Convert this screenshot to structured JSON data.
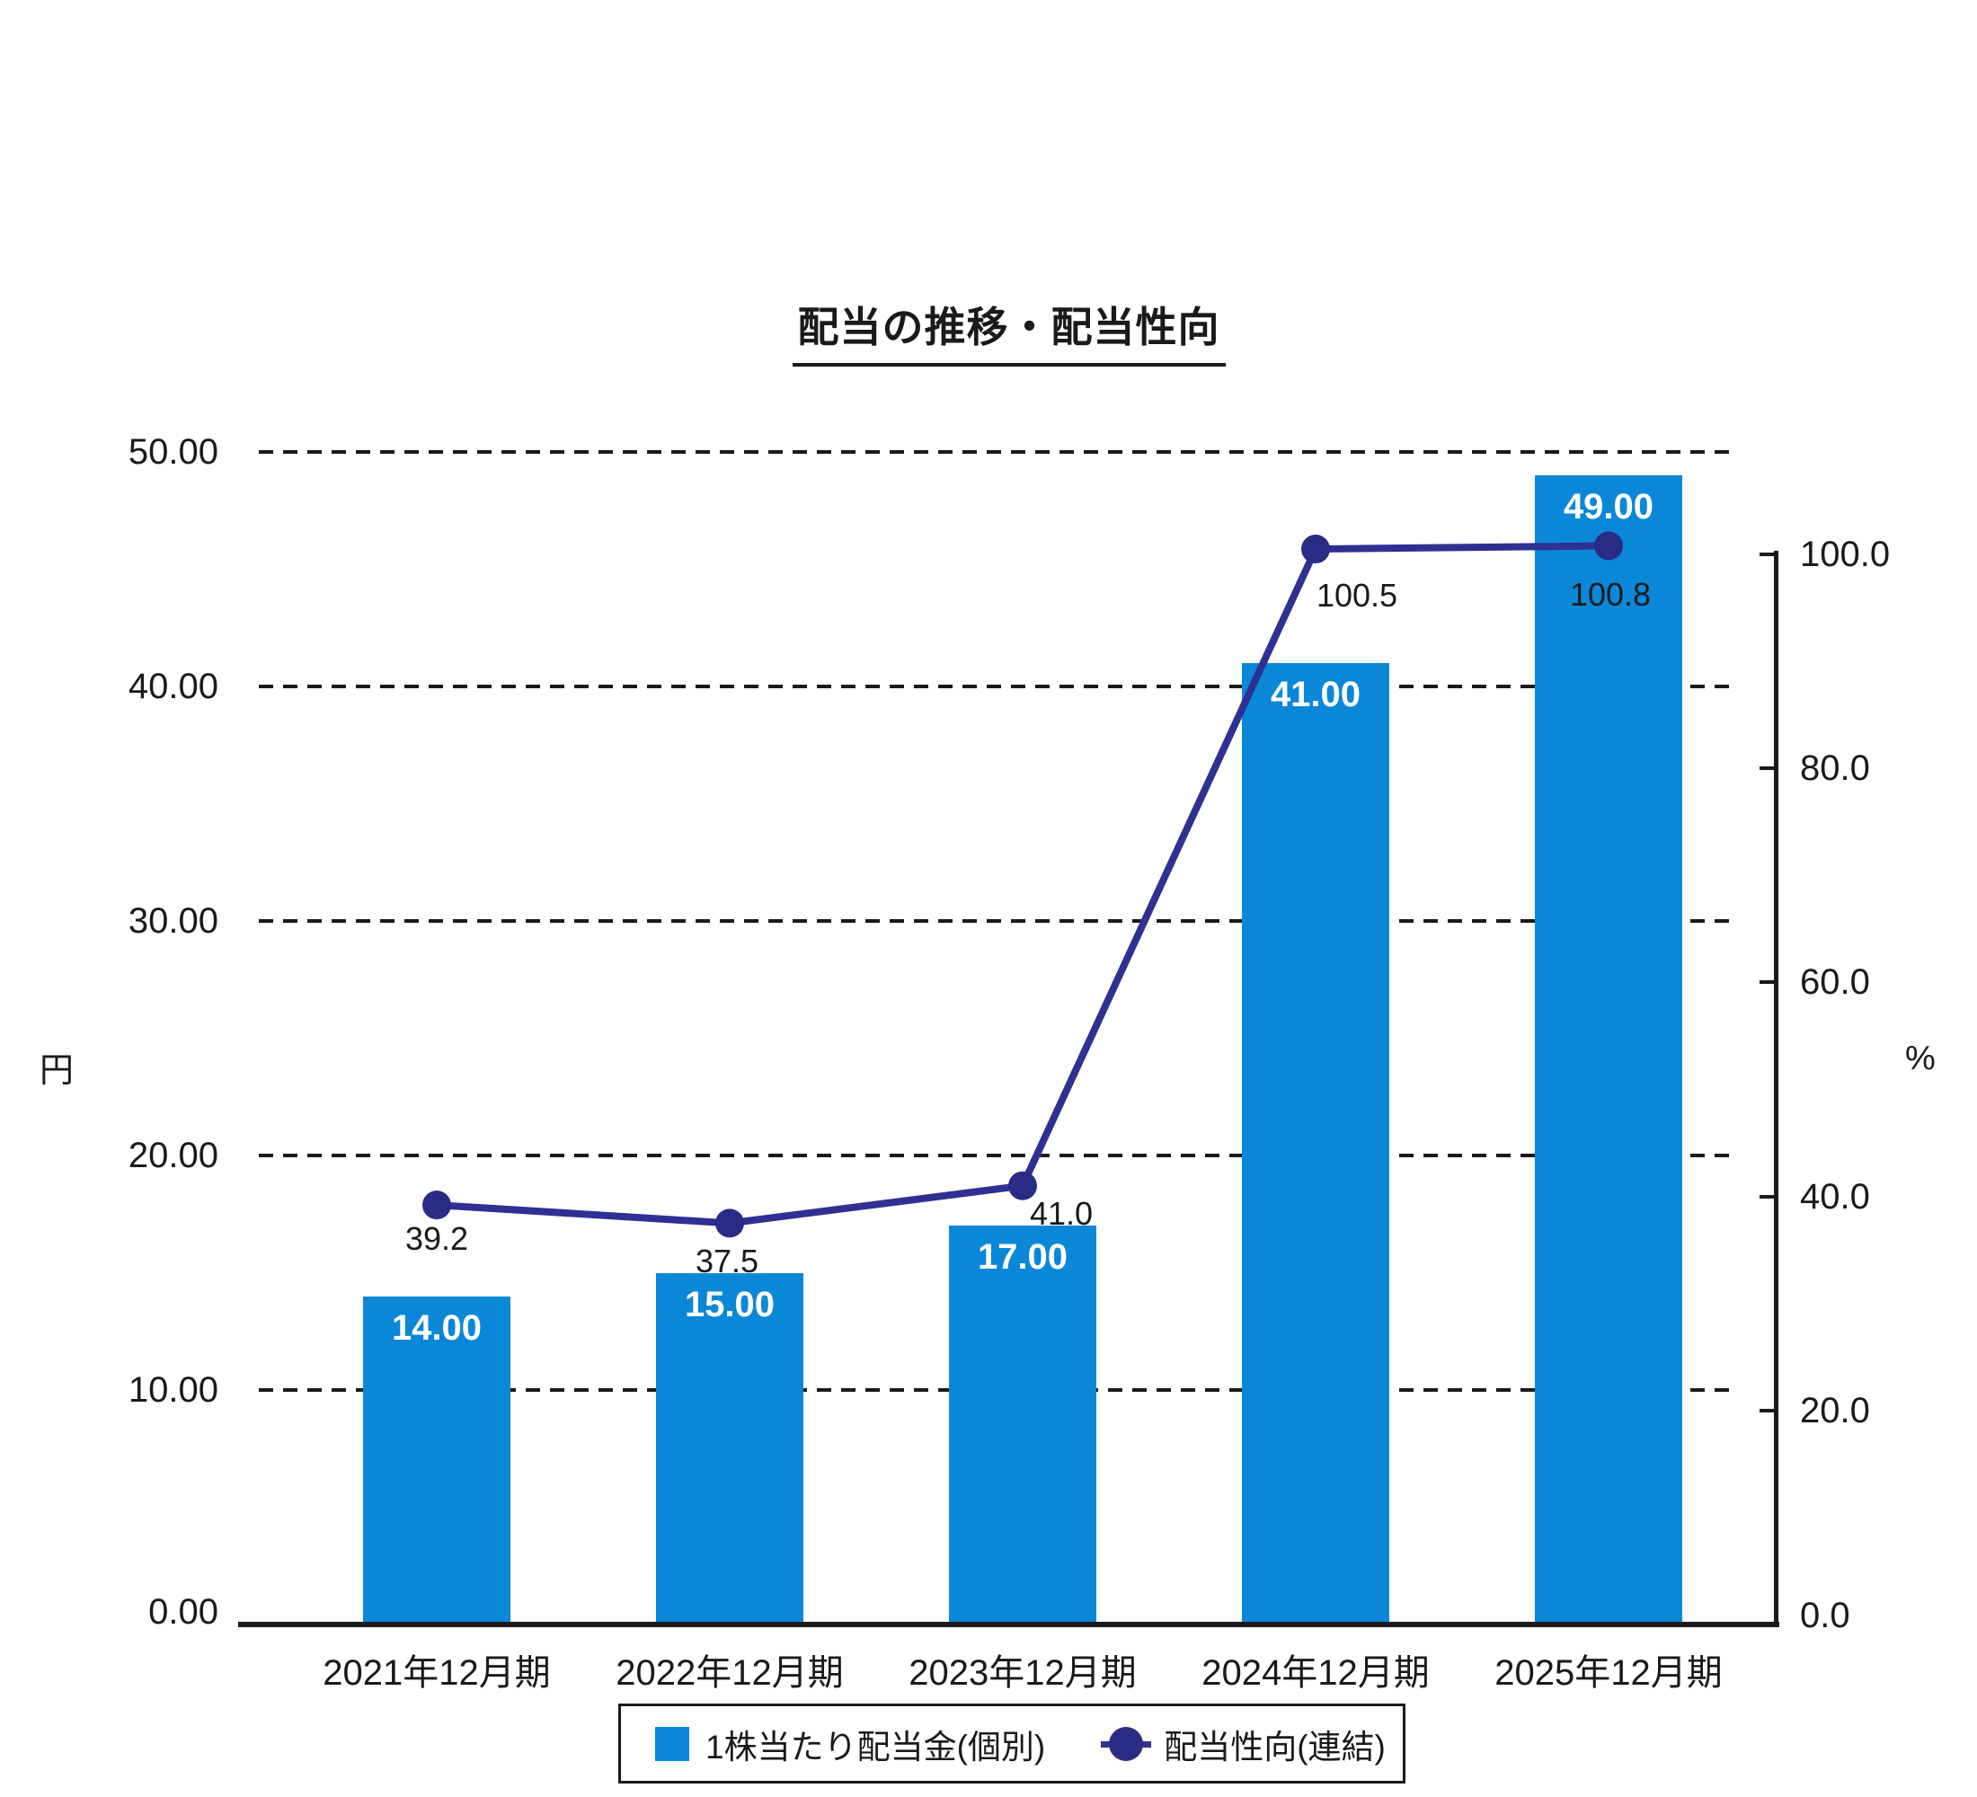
{
  "chart_data": {
    "type": "combo",
    "title": "配当の推移・配当性向",
    "categories": [
      "2021年12月期",
      "2022年12月期",
      "2023年12月期",
      "2024年12月期",
      "2025年12月期"
    ],
    "series": [
      {
        "name": "1株当たり配当金(個別)",
        "type": "bar",
        "axis": "left",
        "color": "#0b87d8",
        "values": [
          14,
          15,
          17,
          41,
          49
        ],
        "labels": [
          "14.00",
          "15.00",
          "17.00",
          "41.00",
          "49.00"
        ]
      },
      {
        "name": "配当性向(連結)",
        "type": "line",
        "axis": "right",
        "color": "#2e3192",
        "marker_color": "#292c85",
        "values": [
          39.2,
          37.5,
          41.0,
          100.5,
          100.8
        ],
        "labels": [
          "39.2",
          "37.5",
          "41.0",
          "100.5",
          "100.8"
        ]
      }
    ],
    "left_axis": {
      "unit": "円",
      "ylim": [
        0,
        50
      ],
      "tick_labels": [
        "0.00",
        "10.00",
        "20.00",
        "30.00",
        "40.00",
        "50.00"
      ],
      "tick_values": [
        0,
        10,
        20,
        30,
        40,
        50
      ]
    },
    "right_axis": {
      "unit": "%",
      "ylim": [
        0,
        100
      ],
      "tick_labels": [
        "0.0",
        "20.0",
        "40.0",
        "60.0",
        "80.0",
        "100.0"
      ],
      "tick_values": [
        0,
        20,
        40,
        60,
        80,
        100
      ]
    },
    "grid": "horizontal-dashed",
    "legend_position": "bottom"
  }
}
